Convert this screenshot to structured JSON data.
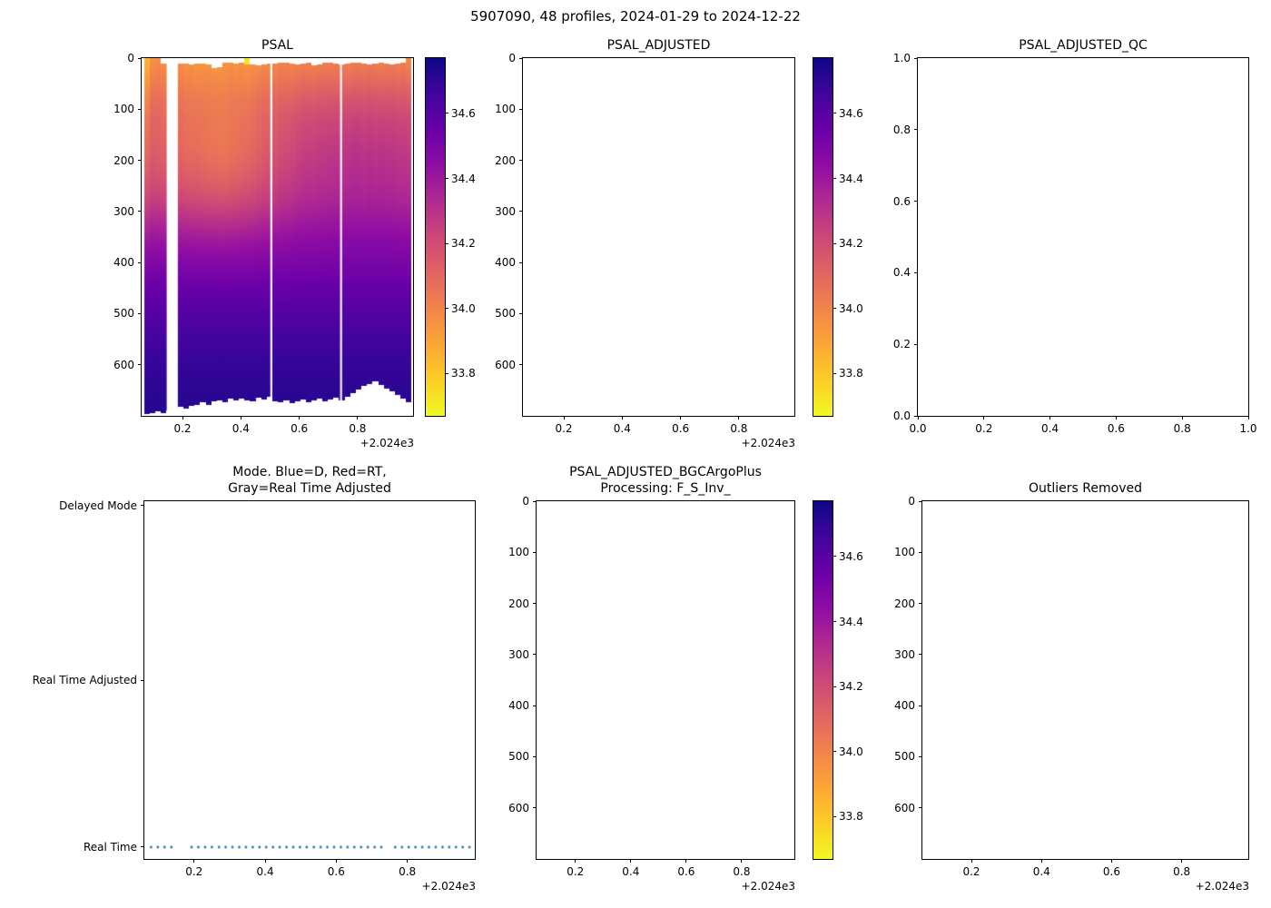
{
  "figure": {
    "title": "5907090, 48 profiles, 2024-01-29 to 2024-12-22",
    "background": "#ffffff"
  },
  "colormap": {
    "name": "plasma_r",
    "stops": [
      [
        0,
        "#0d0887"
      ],
      [
        0.1,
        "#41049d"
      ],
      [
        0.2,
        "#6a00a8"
      ],
      [
        0.3,
        "#8f0da4"
      ],
      [
        0.4,
        "#b12a90"
      ],
      [
        0.5,
        "#cc4778"
      ],
      [
        0.6,
        "#e16462"
      ],
      [
        0.7,
        "#f2844b"
      ],
      [
        0.8,
        "#fca636"
      ],
      [
        0.9,
        "#fcce25"
      ],
      [
        1,
        "#f0f921"
      ]
    ]
  },
  "colorbar": {
    "vmin": 33.67,
    "vmax": 34.77,
    "tick_values": [
      34.6,
      34.4,
      34.2,
      34.0,
      33.8
    ],
    "tick_labels": [
      "34.6",
      "34.4",
      "34.2",
      "34.0",
      "33.8"
    ]
  },
  "time_axis": {
    "xlim": [
      2024.06,
      2024.99
    ],
    "ticks": [
      2024.2,
      2024.4,
      2024.6,
      2024.8
    ],
    "tick_labels": [
      "0.2",
      "0.4",
      "0.6",
      "0.8"
    ],
    "offset_label": "+2.024e3"
  },
  "depth_axis": {
    "ylim": [
      0,
      700
    ],
    "ticks": [
      0,
      100,
      200,
      300,
      400,
      500,
      600
    ],
    "tick_labels": [
      "0",
      "100",
      "200",
      "300",
      "400",
      "500",
      "600"
    ]
  },
  "unit_axis": {
    "lim": [
      0,
      1
    ],
    "ticks": [
      0,
      0.2,
      0.4,
      0.6,
      0.8,
      1
    ],
    "tick_labels": [
      "0.0",
      "0.2",
      "0.4",
      "0.6",
      "0.8",
      "1.0"
    ]
  },
  "chart_data": [
    {
      "id": "psal",
      "type": "heatmap",
      "title": "PSAL",
      "x_axis": "time",
      "y_axis": "depth",
      "profile_times": [
        2024.079,
        2024.098,
        2024.117,
        2024.136,
        2024.155,
        2024.174,
        2024.193,
        2024.212,
        2024.231,
        2024.25,
        2024.27,
        2024.289,
        2024.308,
        2024.327,
        2024.346,
        2024.365,
        2024.384,
        2024.403,
        2024.422,
        2024.441,
        2024.46,
        2024.479,
        2024.498,
        2024.517,
        2024.537,
        2024.556,
        2024.575,
        2024.594,
        2024.613,
        2024.632,
        2024.651,
        2024.67,
        2024.689,
        2024.708,
        2024.727,
        2024.746,
        2024.766,
        2024.785,
        2024.804,
        2024.823,
        2024.842,
        2024.861,
        2024.88,
        2024.899,
        2024.918,
        2024.937,
        2024.956,
        2024.975
      ],
      "base_profile": {
        "depths": [
          0,
          40,
          80,
          120,
          160,
          200,
          240,
          280,
          320,
          360,
          400,
          450,
          500,
          550,
          600,
          650,
          700
        ],
        "psal": [
          34.02,
          34.08,
          34.15,
          34.2,
          34.23,
          34.26,
          34.29,
          34.33,
          34.39,
          34.45,
          34.5,
          34.56,
          34.61,
          34.655,
          34.685,
          34.705,
          34.72
        ]
      },
      "surface_anomaly": [
        -0.15,
        -0.05,
        -0.03,
        -0.04,
        -0.05,
        -0.04,
        -0.03,
        -0.05,
        -0.04,
        -0.06,
        -0.05,
        -0.04,
        -0.06,
        -0.05,
        -0.04,
        -0.03,
        -0.05,
        -0.04,
        -0.06,
        -0.05,
        -0.04,
        -0.03,
        -0.04,
        -0.03,
        -0.02,
        -0.03,
        -0.04,
        -0.03,
        -0.02,
        -0.03,
        -0.04,
        -0.03,
        -0.02,
        -0.03,
        -0.02,
        -0.03,
        -0.04,
        -0.03,
        -0.02,
        -0.03,
        -0.02,
        -0.03,
        -0.04,
        -0.03,
        -0.02,
        -0.03,
        -0.02,
        -0.04
      ],
      "mid_depth_anomaly": [
        -0.1,
        -0.1,
        -0.11,
        -0.12,
        -0.12,
        -0.13,
        -0.14,
        -0.15,
        -0.16,
        -0.16,
        -0.17,
        -0.18,
        -0.18,
        -0.19,
        -0.19,
        -0.18,
        -0.17,
        -0.16,
        -0.15,
        -0.14,
        -0.12,
        -0.1,
        -0.09,
        -0.07,
        -0.05,
        -0.04,
        -0.03,
        -0.01,
        0.0,
        0.01,
        0.01,
        0.02,
        0.02,
        0.03,
        0.03,
        0.04,
        0.04,
        0.05,
        0.05,
        0.04,
        0.05,
        0.04,
        0.05,
        0.04,
        0.04,
        0.03,
        0.03,
        0.02
      ],
      "anomaly_model": {
        "surface_decay_m": 80,
        "first_profile_surface_decay_m": 180,
        "mid_center_m": 190,
        "mid_sigma_m": 110
      },
      "start_depth_m": [
        0,
        0,
        0,
        10,
        10,
        12,
        10,
        10,
        12,
        10,
        10,
        12,
        20,
        18,
        8,
        8,
        10,
        8,
        0,
        12,
        14,
        12,
        10,
        10,
        8,
        8,
        10,
        12,
        10,
        8,
        14,
        12,
        8,
        8,
        10,
        12,
        10,
        8,
        8,
        10,
        12,
        10,
        8,
        10,
        12,
        10,
        8,
        0
      ],
      "max_depth_m": [
        697,
        695,
        692,
        694,
        690,
        688,
        683,
        685,
        680,
        678,
        674,
        678,
        672,
        670,
        674,
        667,
        670,
        666,
        669,
        672,
        665,
        668,
        662,
        672,
        674,
        670,
        676,
        672,
        668,
        674,
        670,
        666,
        672,
        668,
        664,
        670,
        662,
        656,
        648,
        641,
        637,
        633,
        639,
        646,
        652,
        660,
        667,
        674
      ],
      "surface_spike": {
        "profile_index": 18,
        "psal": 33.72,
        "depth_extent_m": 12
      },
      "gaps": [
        {
          "from": 2024.146,
          "to": 2024.184
        },
        {
          "from": 2024.501,
          "to": 2024.5075
        },
        {
          "from": 2024.74,
          "to": 2024.7465
        }
      ]
    },
    {
      "id": "psal_adjusted",
      "type": "heatmap",
      "title": "PSAL_ADJUSTED",
      "x_axis": "time",
      "y_axis": "depth",
      "empty": true
    },
    {
      "id": "psal_adjusted_qc",
      "type": "empty",
      "title": "PSAL_ADJUSTED_QC",
      "x_axis": "unit",
      "y_axis": "unit"
    },
    {
      "id": "mode",
      "type": "scatter",
      "title_lines": [
        "Mode. Blue=D, Red=RT,",
        "Gray=Real Time Adjusted"
      ],
      "x_axis": "time",
      "y_categories": [
        "Delayed Mode",
        "Real Time Adjusted",
        "Real Time"
      ],
      "series": [
        {
          "name": "mode",
          "category": "Real Time",
          "style": "dotted",
          "color": "#1f77b4",
          "x_source": "profile_times"
        }
      ]
    },
    {
      "id": "psal_adjusted_bgcargoplus",
      "type": "heatmap",
      "title_lines": [
        "PSAL_ADJUSTED_BGCArgoPlus",
        "Processing: F_S_Inv_"
      ],
      "x_axis": "time",
      "y_axis": "depth",
      "empty": true
    },
    {
      "id": "outliers_removed",
      "type": "empty",
      "title": "Outliers Removed",
      "x_axis": "time",
      "y_axis": "depth"
    }
  ]
}
